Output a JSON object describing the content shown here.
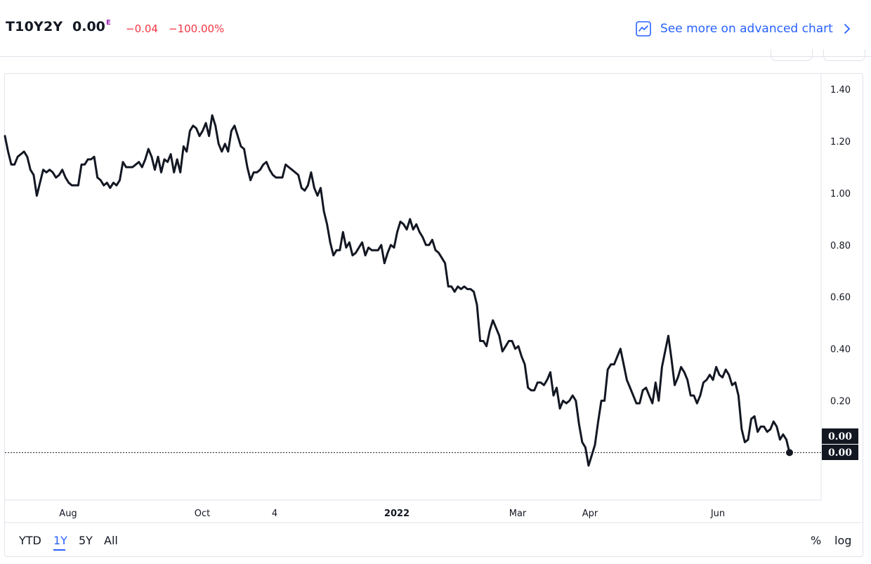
{
  "header": {
    "symbol": "T10Y2Y",
    "price": "0.00",
    "price_flag": "E",
    "change": "−0.04",
    "change_pct": "−100.00%",
    "advanced_link": "See more on advanced chart",
    "advanced_icon": "chart-line-icon",
    "chevron_icon": "chevron-right-icon"
  },
  "toolbar": {
    "ranges": [
      "YTD",
      "1Y",
      "5Y",
      "All"
    ],
    "active_range": "1Y",
    "percent_label": "%",
    "log_label": "log"
  },
  "colors": {
    "line": "#131722",
    "accent": "#2962ff",
    "negative": "#f23645",
    "flag": "#9c27b0",
    "grid": "#e0e3eb"
  },
  "chart_data": {
    "type": "line",
    "series": [
      {
        "values": [
          1.22,
          1.16,
          1.11,
          1.11,
          1.14,
          1.15,
          1.16,
          1.14,
          1.09,
          1.07,
          0.99,
          1.04,
          1.09,
          1.08,
          1.09,
          1.08,
          1.06,
          1.07,
          1.09,
          1.06,
          1.04,
          1.03,
          1.03,
          1.03,
          1.11,
          1.11,
          1.13,
          1.13,
          1.14,
          1.06,
          1.05,
          1.03,
          1.04,
          1.02,
          1.04,
          1.03,
          1.05,
          1.12,
          1.1,
          1.1,
          1.1,
          1.11,
          1.12,
          1.1,
          1.13,
          1.17,
          1.14,
          1.09,
          1.14,
          1.08,
          1.13,
          1.12,
          1.15,
          1.08,
          1.13,
          1.08,
          1.18,
          1.16,
          1.24,
          1.26,
          1.25,
          1.22,
          1.24,
          1.27,
          1.22,
          1.3,
          1.26,
          1.19,
          1.16,
          1.19,
          1.16,
          1.24,
          1.26,
          1.22,
          1.18,
          1.17,
          1.1,
          1.05,
          1.08,
          1.08,
          1.09,
          1.11,
          1.12,
          1.09,
          1.07,
          1.06,
          1.06,
          1.06,
          1.11,
          1.1,
          1.09,
          1.08,
          1.07,
          1.02,
          1.01,
          1.03,
          1.08,
          1.02,
          0.99,
          1.02,
          0.93,
          0.88,
          0.81,
          0.76,
          0.78,
          0.78,
          0.85,
          0.79,
          0.81,
          0.76,
          0.77,
          0.79,
          0.81,
          0.76,
          0.79,
          0.78,
          0.78,
          0.78,
          0.8,
          0.73,
          0.77,
          0.8,
          0.79,
          0.85,
          0.89,
          0.88,
          0.86,
          0.9,
          0.86,
          0.88,
          0.85,
          0.83,
          0.8,
          0.8,
          0.82,
          0.78,
          0.77,
          0.75,
          0.73,
          0.64,
          0.64,
          0.62,
          0.64,
          0.63,
          0.64,
          0.63,
          0.63,
          0.62,
          0.57,
          0.43,
          0.43,
          0.41,
          0.47,
          0.51,
          0.48,
          0.45,
          0.39,
          0.41,
          0.43,
          0.43,
          0.4,
          0.41,
          0.37,
          0.34,
          0.25,
          0.24,
          0.24,
          0.27,
          0.27,
          0.26,
          0.28,
          0.31,
          0.22,
          0.25,
          0.17,
          0.2,
          0.19,
          0.2,
          0.22,
          0.2,
          0.11,
          0.04,
          0.02,
          -0.05,
          -0.01,
          0.03,
          0.12,
          0.2,
          0.2,
          0.32,
          0.34,
          0.34,
          0.37,
          0.4,
          0.34,
          0.28,
          0.25,
          0.22,
          0.19,
          0.19,
          0.24,
          0.25,
          0.22,
          0.19,
          0.27,
          0.2,
          0.33,
          0.39,
          0.45,
          0.36,
          0.26,
          0.29,
          0.33,
          0.31,
          0.28,
          0.22,
          0.22,
          0.19,
          0.22,
          0.27,
          0.28,
          0.3,
          0.28,
          0.33,
          0.3,
          0.29,
          0.32,
          0.3,
          0.26,
          0.27,
          0.22,
          0.09,
          0.04,
          0.05,
          0.13,
          0.14,
          0.08,
          0.1,
          0.1,
          0.08,
          0.09,
          0.12,
          0.1,
          0.05,
          0.07,
          0.05,
          0.0
        ]
      }
    ],
    "x_tick_labels": [
      "Aug",
      "Oct",
      "4",
      "2022",
      "Mar",
      "Apr",
      "Jun"
    ],
    "bold_x_tick": "2022",
    "y_ticks": [
      0.2,
      0.4,
      0.6,
      0.8,
      1.0,
      1.2,
      1.4
    ],
    "y_tick_labels": [
      "0.20",
      "0.40",
      "0.60",
      "0.80",
      "1.00",
      "1.20",
      "1.40"
    ],
    "ylim": [
      -0.183,
      1.46
    ],
    "last_value_labels": [
      "0.00",
      "0.00"
    ],
    "grid": false,
    "reference_line": "dotted at last value"
  }
}
